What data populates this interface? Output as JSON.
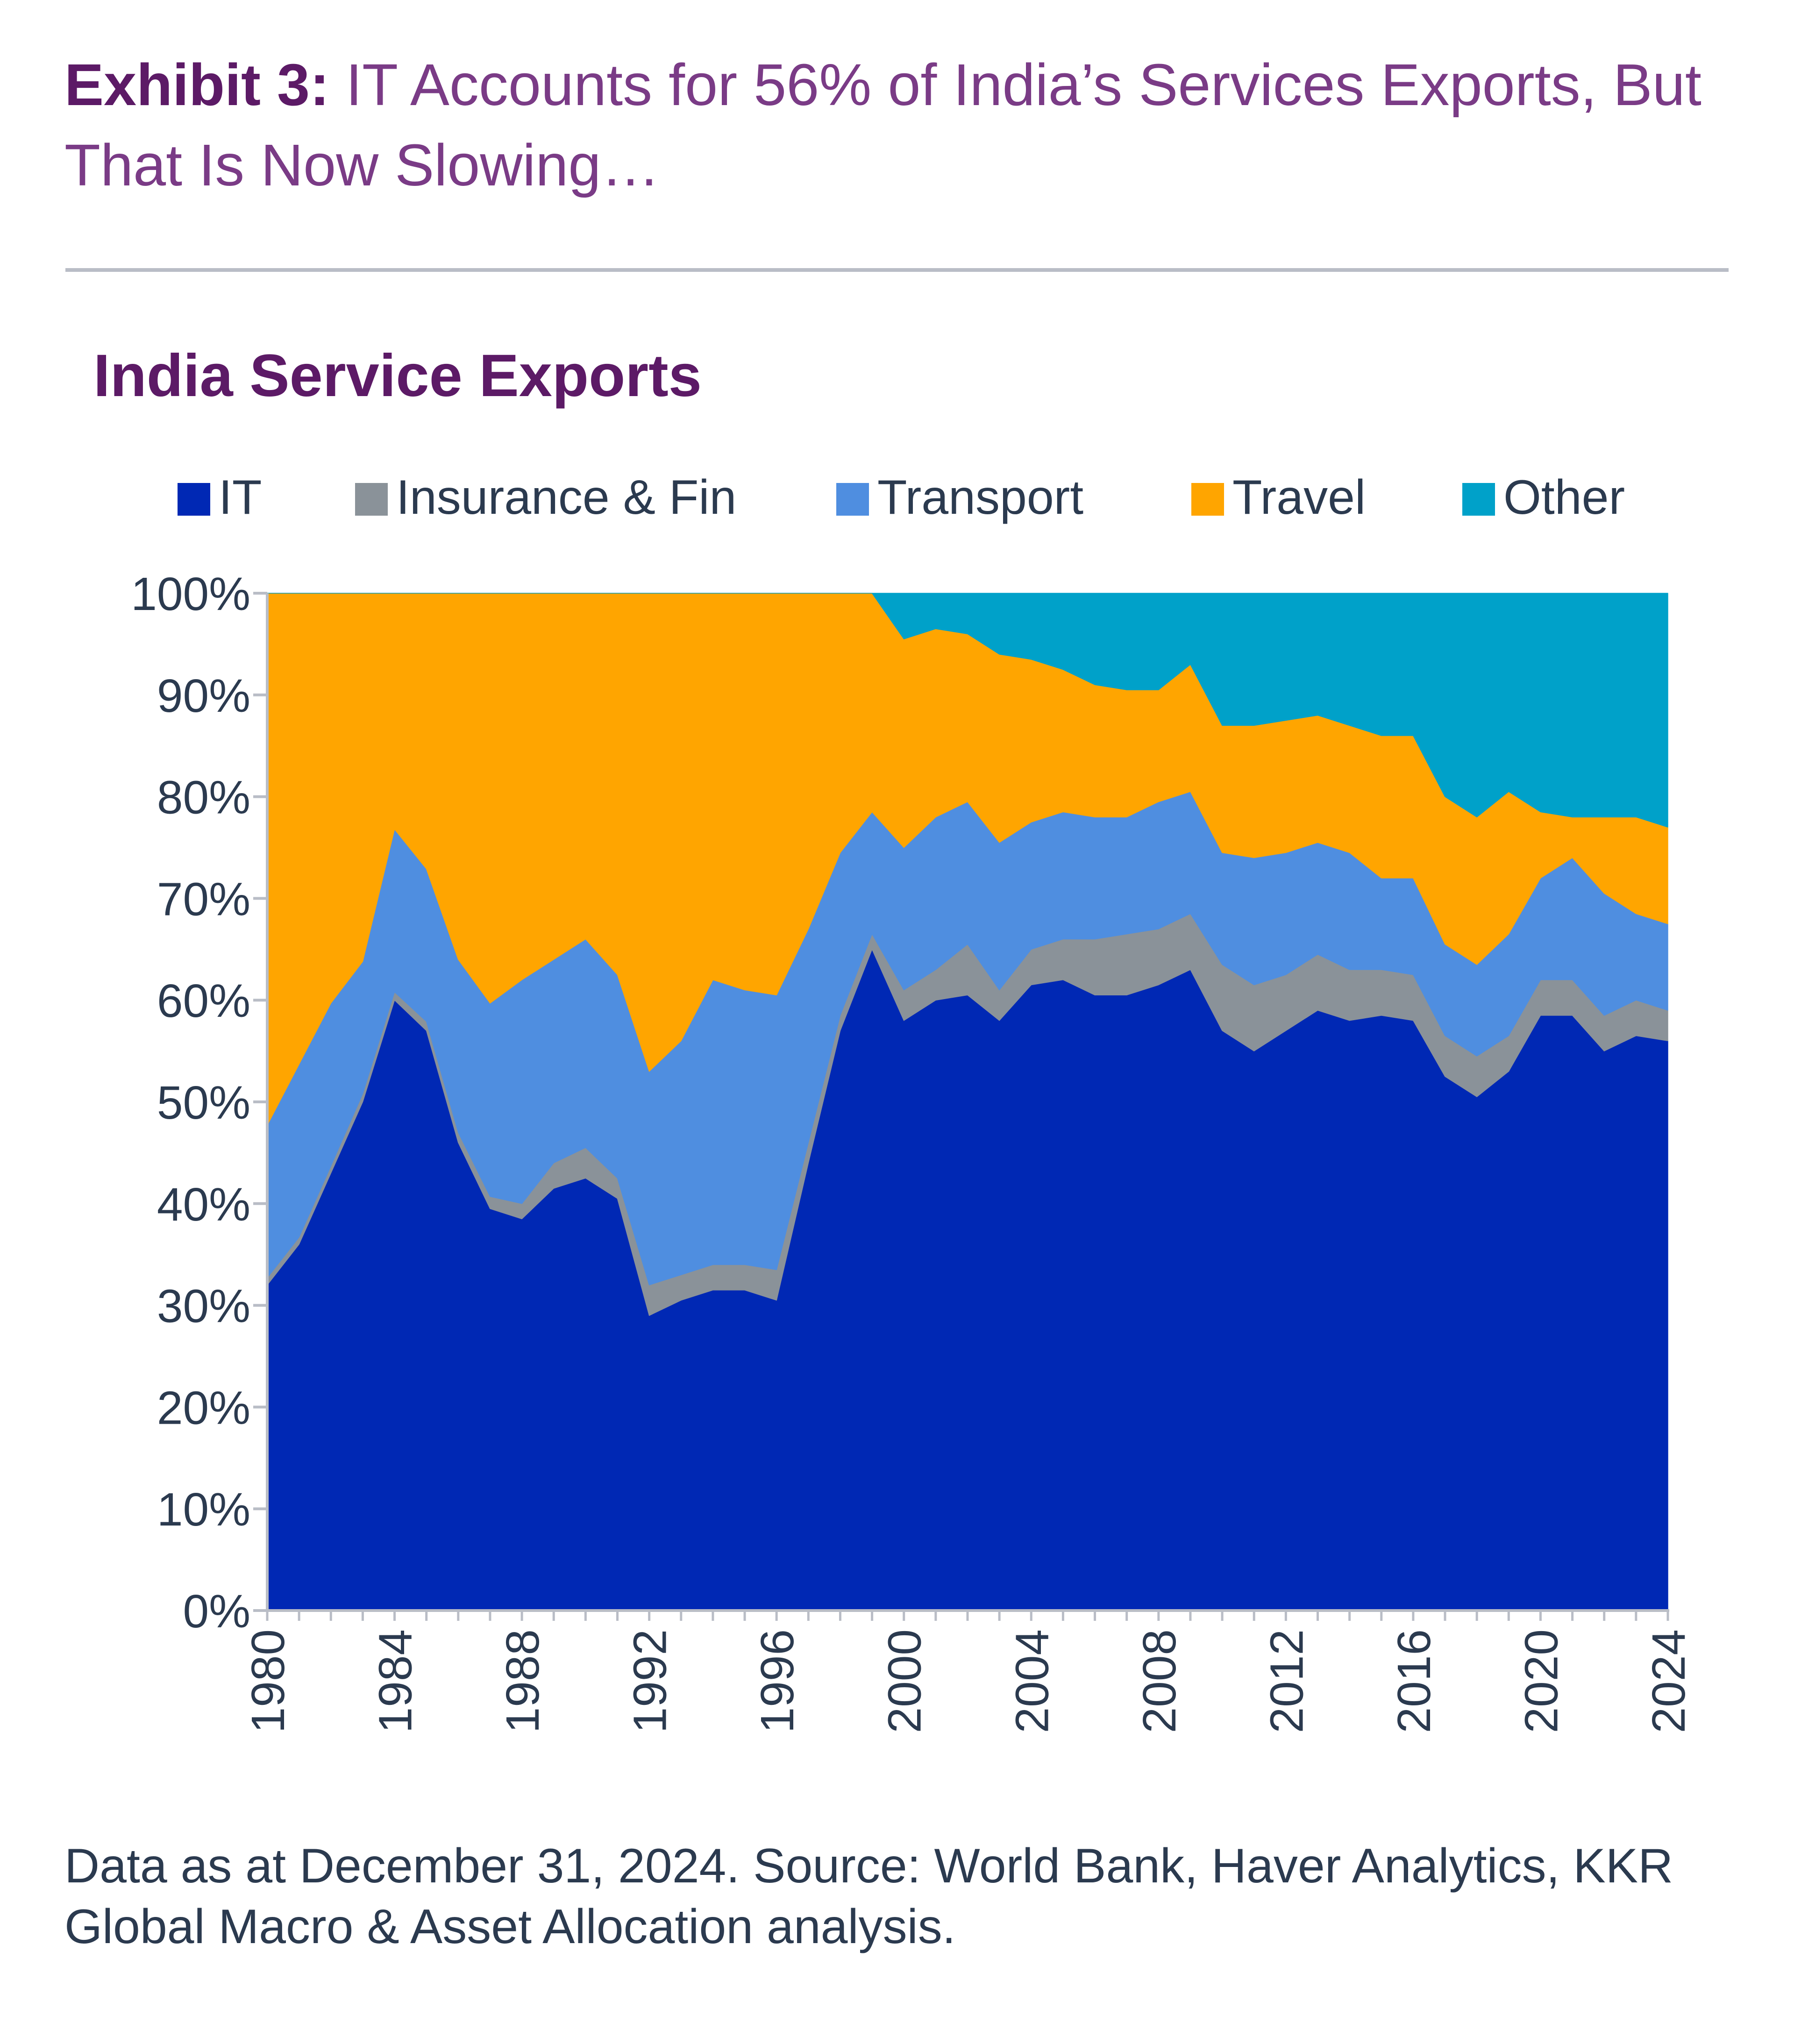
{
  "header": {
    "exhibit_label": "Exhibit 3:",
    "exhibit_title": "IT Accounts for 56% of India’s Services Exports, But That Is Now Slowing…"
  },
  "footnote": "Data as at December 31, 2024. Source: World Bank, Haver Analytics, KKR Global Macro & Asset Allocation analysis.",
  "chart_data": {
    "type": "area",
    "stacked": true,
    "title": "India Service Exports",
    "xlabel": "",
    "ylabel": "",
    "ylim": [
      0,
      100
    ],
    "y_unit": "%",
    "y_ticks": [
      "0%",
      "10%",
      "20%",
      "30%",
      "40%",
      "50%",
      "60%",
      "70%",
      "80%",
      "90%",
      "100%"
    ],
    "x_ticks": [
      "1980",
      "1984",
      "1988",
      "1992",
      "1996",
      "2000",
      "2004",
      "2008",
      "2012",
      "2016",
      "2020",
      "2024"
    ],
    "legend_position": "top",
    "grid": false,
    "x": [
      1980,
      1981,
      1982,
      1983,
      1984,
      1985,
      1986,
      1987,
      1988,
      1989,
      1990,
      1991,
      1992,
      1993,
      1994,
      1995,
      1996,
      1997,
      1998,
      1999,
      2000,
      2001,
      2002,
      2003,
      2004,
      2005,
      2006,
      2007,
      2008,
      2009,
      2010,
      2011,
      2012,
      2013,
      2014,
      2015,
      2016,
      2017,
      2018,
      2019,
      2020,
      2021,
      2022,
      2023,
      2024
    ],
    "series": [
      {
        "name": "IT",
        "color": "#0028b4",
        "values": [
          32,
          36,
          43,
          50,
          60,
          57,
          46,
          39.5,
          38.5,
          41.5,
          42.5,
          40.5,
          29,
          30.5,
          31.5,
          31.5,
          30.5,
          44,
          57,
          65,
          58,
          60,
          60.5,
          58,
          61.5,
          62,
          60.5,
          60.5,
          61.5,
          63,
          57,
          55,
          57,
          59,
          58,
          58.5,
          58,
          52.5,
          50.5,
          53,
          58.5,
          58.5,
          55,
          56.5,
          56
        ]
      },
      {
        "name": "Insurance & Fin",
        "color": "#8a9299",
        "values": [
          0.7,
          0.7,
          0.7,
          0.8,
          0.8,
          0.9,
          1,
          1.2,
          1.5,
          2.5,
          3,
          2,
          3,
          2.5,
          2.5,
          2.5,
          3,
          2,
          1.5,
          1.5,
          3,
          3,
          5,
          3,
          3.5,
          4,
          5.5,
          6,
          5.5,
          5.5,
          6.5,
          6.5,
          5.5,
          5.5,
          5,
          4.5,
          4.5,
          4,
          4,
          3.5,
          3.5,
          3.5,
          3.5,
          3.5,
          3
        ]
      },
      {
        "name": "Transport",
        "color": "#4f8ee0",
        "values": [
          15,
          17,
          16,
          13,
          16,
          15,
          17,
          19,
          22,
          20,
          20.5,
          20,
          21,
          23,
          28,
          27,
          27,
          21,
          16,
          12,
          14,
          15,
          14,
          14.5,
          12.5,
          12.5,
          12,
          11.5,
          12.5,
          12,
          11,
          12.5,
          12,
          11,
          11.5,
          9,
          9.5,
          9,
          9,
          10,
          10,
          12,
          12,
          8.5,
          8.5
        ]
      },
      {
        "name": "Travel",
        "color": "#ffa500",
        "values": [
          52.3,
          46.3,
          40.3,
          36.2,
          23.2,
          27.1,
          36,
          40.3,
          38,
          36,
          34,
          37.5,
          47,
          44,
          38,
          39,
          39.5,
          33,
          25.5,
          21.5,
          20.5,
          18.5,
          16.5,
          18.5,
          16,
          14,
          13,
          12.5,
          11,
          12.5,
          12.5,
          13,
          13,
          12.5,
          12.5,
          14,
          14,
          14.5,
          14.5,
          14,
          6.5,
          4,
          7.5,
          9.5,
          9.5
        ]
      },
      {
        "name": "Other",
        "color": "#00a1c9",
        "values": [
          0,
          0,
          0,
          0,
          0,
          0,
          0,
          0,
          0,
          0,
          0,
          0,
          0,
          0,
          0,
          0,
          0,
          0,
          0,
          0,
          4.5,
          3.5,
          4,
          6,
          6.5,
          7.5,
          9,
          9.5,
          9.5,
          7,
          13,
          13,
          12.5,
          12,
          13,
          14,
          14,
          20,
          22,
          19.5,
          21.5,
          22,
          22,
          22,
          23
        ]
      }
    ]
  }
}
